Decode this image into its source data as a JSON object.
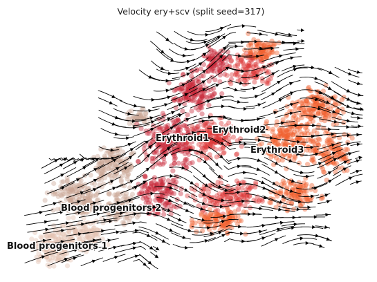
{
  "chart_data": {
    "type": "scatter",
    "subtype": "velocity-stream-embedding",
    "title": "Velocity ery+scv (split seed=317)",
    "xlabel": "",
    "ylabel": "",
    "axes_visible": false,
    "grid": false,
    "legend": "on data",
    "clusters": [
      {
        "name": "Blood progenitors 1",
        "color": "#e3c2b0"
      },
      {
        "name": "Blood progenitors 2",
        "color": "#cba796"
      },
      {
        "name": "Erythroid1",
        "color": "#c8283a"
      },
      {
        "name": "Erythroid2",
        "color": "#dd3a3a"
      },
      {
        "name": "Erythroid3",
        "color": "#f0602e"
      }
    ],
    "streamline_color": "#000000"
  }
}
